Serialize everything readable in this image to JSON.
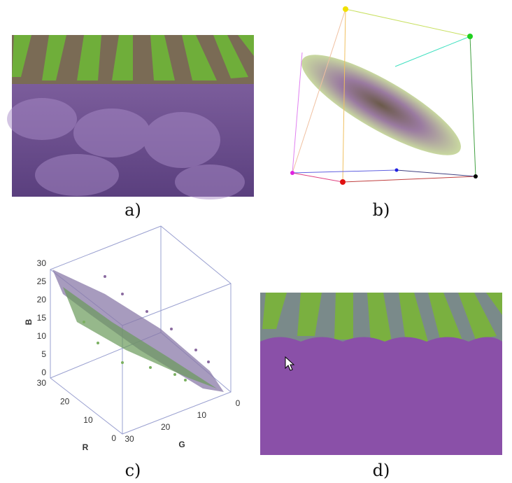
{
  "panels": [
    {
      "label": "a)"
    },
    {
      "label": "b)"
    },
    {
      "label": "c)",
      "axes": {
        "b": {
          "label": "B",
          "ticks": [
            0,
            5,
            10,
            15,
            20,
            25,
            30
          ]
        },
        "r": {
          "label": "R",
          "ticks": [
            0,
            10,
            20,
            30
          ]
        },
        "g": {
          "label": "G",
          "ticks": [
            0,
            10,
            20,
            30
          ]
        }
      }
    },
    {
      "label": "d)"
    }
  ]
}
